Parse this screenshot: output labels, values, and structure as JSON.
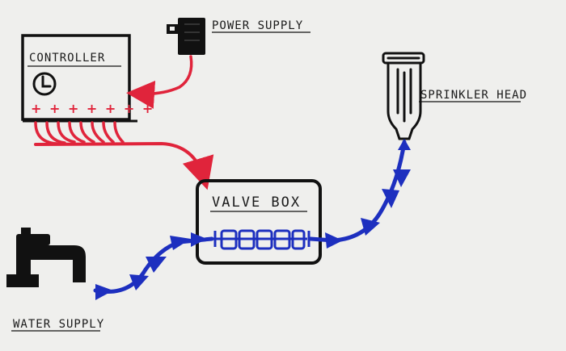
{
  "labels": {
    "controller": "CONTROLLER",
    "power_supply": "POWER SUPPLY",
    "sprinkler_head": "SPRINKLER HEAD",
    "valve_box": "VALVE BOX",
    "water_supply": "WATER SUPPLY"
  },
  "controller_terminals": "+ + + + + + +",
  "colors": {
    "power_wire": "#e0243b",
    "water_line": "#1d2fbf",
    "ink": "#111111",
    "paper": "#efefed"
  },
  "icons": {
    "clock": "clock-icon",
    "power_plug": "power-plug-icon",
    "faucet": "faucet-icon",
    "sprinkler": "sprinkler-head-icon"
  }
}
